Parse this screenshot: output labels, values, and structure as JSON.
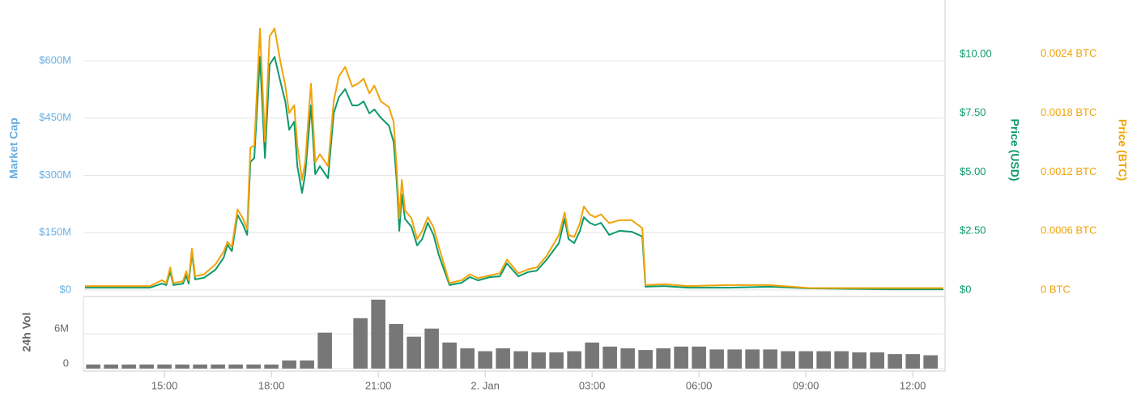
{
  "chart_data": [
    {
      "type": "line",
      "ylabel": "Market Cap",
      "y2label": "Price (USD)",
      "y3label": "Price (BTC)",
      "ylim": [
        0,
        759000000
      ],
      "yticks": [
        {
          "value": 0,
          "label": "$0"
        },
        {
          "value": 150000000,
          "label": "$150M"
        },
        {
          "value": 300000000,
          "label": "$300M"
        },
        {
          "value": 450000000,
          "label": "$450M"
        },
        {
          "value": 600000000,
          "label": "$600M"
        }
      ],
      "y2lim": [
        0,
        12.3
      ],
      "y2ticks": [
        {
          "value": 0,
          "label": "$0"
        },
        {
          "value": 2.5,
          "label": "$2.50"
        },
        {
          "value": 5,
          "label": "$5.00"
        },
        {
          "value": 7.5,
          "label": "$7.50"
        },
        {
          "value": 10,
          "label": "$10.00"
        }
      ],
      "y3lim": [
        0,
        0.00295
      ],
      "y3ticks": [
        {
          "value": 0,
          "label": "0 BTC"
        },
        {
          "value": 0.0006,
          "label": "0.0006 BTC"
        },
        {
          "value": 0.0012,
          "label": "0.0012 BTC"
        },
        {
          "value": 0.0018,
          "label": "0.0018 BTC"
        },
        {
          "value": 0.0024,
          "label": "0.0024 BTC"
        }
      ],
      "grid": true,
      "xlim": [
        12.77,
        36.86
      ],
      "x": [
        12.77,
        14.59,
        14.93,
        15.05,
        15.16,
        15.25,
        15.52,
        15.61,
        15.68,
        15.77,
        15.86,
        16.11,
        16.43,
        16.66,
        16.77,
        16.89,
        17.05,
        17.2,
        17.32,
        17.41,
        17.52,
        17.68,
        17.82,
        17.95,
        18.09,
        18.25,
        18.39,
        18.5,
        18.64,
        18.73,
        18.86,
        18.95,
        19.11,
        19.23,
        19.36,
        19.59,
        19.75,
        19.89,
        20.07,
        20.27,
        20.43,
        20.59,
        20.75,
        20.89,
        21.07,
        21.3,
        21.43,
        21.52,
        21.59,
        21.66,
        21.75,
        21.93,
        22.09,
        22.23,
        22.39,
        22.55,
        22.7,
        23.0,
        23.34,
        23.57,
        23.8,
        24.14,
        24.41,
        24.61,
        24.93,
        25.2,
        25.45,
        25.73,
        26.07,
        26.23,
        26.34,
        26.5,
        26.66,
        26.77,
        26.93,
        27.09,
        27.25,
        27.48,
        27.77,
        28.11,
        28.41,
        28.5,
        29.02,
        29.7,
        30.84,
        31.98,
        33.11,
        35.39,
        36.86
      ],
      "series": [
        {
          "color": "#0d9a6d",
          "axis": "y2",
          "values": [
            0.1,
            0.1,
            0.27,
            0.21,
            0.79,
            0.21,
            0.27,
            0.62,
            0.27,
            1.58,
            0.45,
            0.52,
            0.86,
            1.37,
            1.92,
            1.65,
            3.19,
            2.78,
            2.34,
            5.43,
            5.6,
            9.89,
            5.6,
            9.55,
            9.89,
            8.86,
            8.0,
            6.8,
            7.14,
            5.25,
            4.12,
            4.91,
            7.83,
            4.91,
            5.25,
            4.74,
            7.49,
            8.17,
            8.52,
            7.83,
            7.83,
            8.0,
            7.49,
            7.66,
            7.31,
            6.97,
            6.28,
            4.57,
            2.51,
            4.05,
            3.02,
            2.68,
            1.89,
            2.16,
            2.85,
            2.34,
            1.48,
            0.21,
            0.31,
            0.55,
            0.41,
            0.55,
            0.58,
            1.13,
            0.58,
            0.76,
            0.82,
            1.3,
            1.99,
            3.02,
            2.16,
            1.99,
            2.51,
            3.09,
            2.85,
            2.75,
            2.85,
            2.34,
            2.51,
            2.47,
            2.27,
            0.14,
            0.17,
            0.1,
            0.1,
            0.14,
            0.07,
            0.03,
            0.03
          ]
        },
        {
          "color": "#f0a30a",
          "axis": "y3",
          "values": [
            4e-05,
            4e-05,
            0.0001,
            7e-05,
            0.00023,
            7e-05,
            9e-05,
            0.00019,
            0.0001,
            0.00042,
            0.00014,
            0.00016,
            0.00026,
            0.00039,
            0.00049,
            0.00044,
            0.00082,
            0.00073,
            0.00062,
            0.00145,
            0.00147,
            0.00266,
            0.00151,
            0.00258,
            0.00266,
            0.00233,
            0.00208,
            0.0018,
            0.00188,
            0.00147,
            0.00112,
            0.0013,
            0.0021,
            0.0013,
            0.00138,
            0.00126,
            0.00192,
            0.00217,
            0.00227,
            0.00207,
            0.0021,
            0.00215,
            0.002,
            0.00208,
            0.00192,
            0.00186,
            0.00171,
            0.00122,
            0.00073,
            0.00112,
            0.00081,
            0.00073,
            0.00052,
            0.0006,
            0.00074,
            0.00064,
            0.00044,
            7e-05,
            0.0001,
            0.00016,
            0.00012,
            0.00015,
            0.00017,
            0.00031,
            0.00017,
            0.00021,
            0.00023,
            0.00035,
            0.00056,
            0.00079,
            0.00056,
            0.00054,
            0.00068,
            0.00085,
            0.00077,
            0.00074,
            0.00077,
            0.00068,
            0.00071,
            0.00071,
            0.00063,
            5e-05,
            6e-05,
            4e-05,
            5e-05,
            5e-05,
            2e-05,
            2e-05,
            2e-05
          ]
        }
      ]
    },
    {
      "type": "bar",
      "ylabel": "24h Vol",
      "ylim": [
        0,
        12300000
      ],
      "yticks": [
        0,
        {
          "value": 6000000,
          "label": "6M"
        }
      ],
      "color": "#777777",
      "xlim": [
        12.77,
        36.86
      ],
      "xticks": [
        {
          "value": 15,
          "label": "15:00"
        },
        {
          "value": 18,
          "label": "18:00"
        },
        {
          "value": 21,
          "label": "21:00"
        },
        {
          "value": 24,
          "label": "2. Jan"
        },
        {
          "value": 27,
          "label": "03:00"
        },
        {
          "value": 30,
          "label": "06:00"
        },
        {
          "value": 33,
          "label": "09:00"
        },
        {
          "value": 36,
          "label": "12:00"
        }
      ],
      "x": [
        13.0,
        13.5,
        14.0,
        14.5,
        15.0,
        15.5,
        16.0,
        16.5,
        17.0,
        17.5,
        18.0,
        18.5,
        19.0,
        19.5,
        20.0,
        20.5,
        21.0,
        21.5,
        22.0,
        22.5,
        23.0,
        23.5,
        24.0,
        24.5,
        25.0,
        25.5,
        26.0,
        26.5,
        27.0,
        27.5,
        28.0,
        28.5,
        29.0,
        29.5,
        30.0,
        30.5,
        31.0,
        31.5,
        32.0,
        32.5,
        33.0,
        33.5,
        34.0,
        34.5,
        35.0,
        35.5,
        36.0,
        36.5
      ],
      "values": [
        700000,
        700000,
        700000,
        700000,
        700000,
        700000,
        700000,
        700000,
        700000,
        700000,
        700000,
        1400000,
        1400000,
        6200000,
        0,
        8700000,
        11900000,
        7700000,
        5500000,
        6900000,
        4500000,
        3500000,
        3000000,
        3500000,
        3000000,
        2800000,
        2800000,
        3000000,
        4500000,
        3800000,
        3500000,
        3200000,
        3500000,
        3800000,
        3800000,
        3300000,
        3300000,
        3300000,
        3300000,
        3000000,
        3000000,
        3000000,
        3000000,
        2800000,
        2800000,
        2500000,
        2500000,
        2300000
      ]
    }
  ]
}
